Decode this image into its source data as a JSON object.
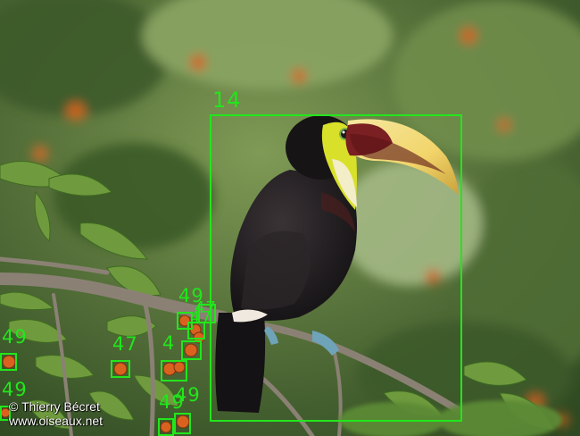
{
  "photo": {
    "subject": "toucan perched on a branch",
    "colors": {
      "background": "#4d6a36",
      "bird_body": "#1c1a1a",
      "bird_face": "#d8e02a",
      "beak_dark": "#7a1f22",
      "beak_light": "#f2d86a",
      "fruit": "#d9621e"
    }
  },
  "credit": {
    "line1": "© Thierry Bécret",
    "line2": "www.oiseaux.net"
  },
  "annotation_color": "#22e61c",
  "detections": [
    {
      "label": "14",
      "kind": "bird"
    },
    {
      "label": "49",
      "kind": "fruit"
    },
    {
      "label": "47",
      "kind": "fruit"
    },
    {
      "label": "47",
      "kind": "fruit"
    },
    {
      "label": "47",
      "kind": "fruit"
    },
    {
      "label": "4",
      "kind": "fruit"
    },
    {
      "label": "47",
      "kind": "fruit"
    },
    {
      "label": "49",
      "kind": "fruit"
    },
    {
      "label": "49",
      "kind": "fruit"
    },
    {
      "label": "49",
      "kind": "fruit"
    },
    {
      "label": "49",
      "kind": "fruit"
    }
  ]
}
